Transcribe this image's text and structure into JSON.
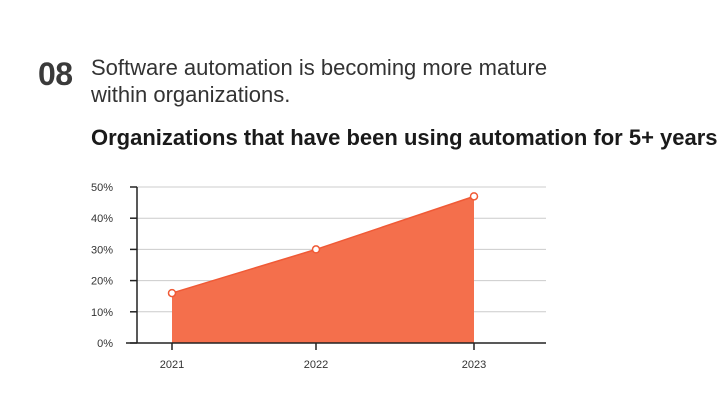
{
  "header": {
    "number": "08",
    "headline_line1": "Software automation is becoming more mature",
    "headline_line2": "within organizations."
  },
  "colors": {
    "area_fill": "#f46f4c",
    "line": "#f05a36",
    "grid": "#cccccc",
    "axis": "#222222"
  },
  "chart_data": {
    "type": "area",
    "title": "Organizations that have been using automation for 5+ years",
    "categories": [
      "2021",
      "2022",
      "2023"
    ],
    "values": [
      16,
      30,
      47
    ],
    "ylim": [
      0,
      50
    ],
    "yticks": [
      "0%",
      "10%",
      "20%",
      "30%",
      "40%",
      "50%"
    ],
    "grid": true,
    "markers": true
  }
}
